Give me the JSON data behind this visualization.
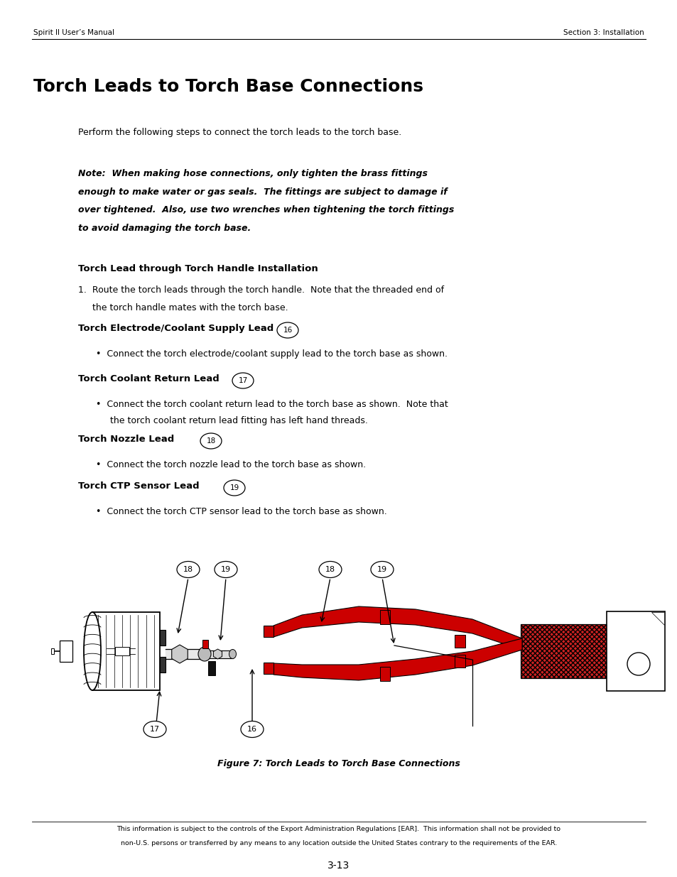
{
  "page_width": 9.54,
  "page_height": 12.35,
  "bg_color": "#ffffff",
  "header_left": "Spirit II User’s Manual",
  "header_right": "Section 3: Installation",
  "title": "Torch Leads to Torch Base Connections",
  "intro_text": "Perform the following steps to connect the torch leads to the torch base.",
  "note_line1": "Note:  When making hose connections, only tighten the brass fittings",
  "note_line2": "enough to make water or gas seals.  The fittings are subject to damage if",
  "note_line3": "over tightened.  Also, use two wrenches when tightening the torch fittings",
  "note_line4": "to avoid damaging the torch base.",
  "s1_title": "Torch Lead through Torch Handle Installation",
  "s1_body1": "1.  Route the torch leads through the torch handle.  Note that the threaded end of",
  "s1_body2": "     the torch handle mates with the torch base.",
  "s2_title": "Torch Electrode/Coolant Supply Lead",
  "s2_num": "16",
  "s2_body": "Connect the torch electrode/coolant supply lead to the torch base as shown.",
  "s3_title": "Torch Coolant Return Lead",
  "s3_num": "17",
  "s3_body1": "Connect the torch coolant return lead to the torch base as shown.  Note that",
  "s3_body2": "the torch coolant return lead fitting has left hand threads.",
  "s4_title": "Torch Nozzle Lead",
  "s4_num": "18",
  "s4_body": "Connect the torch nozzle lead to the torch base as shown.",
  "s5_title": "Torch CTP Sensor Lead",
  "s5_num": "19",
  "s5_body": "Connect the torch CTP sensor lead to the torch base as shown.",
  "figure_caption": "Figure 7: Torch Leads to Torch Base Connections",
  "footer_line1": "This information is subject to the controls of the Export Administration Regulations [EAR].  This information shall not be provided to",
  "footer_line2": "non-U.S. persons or transferred by any means to any location outside the United States contrary to the requirements of the EAR.",
  "page_num": "3-13",
  "red": "#cc0000",
  "dark_red": "#aa0000",
  "black": "#000000",
  "dark_gray": "#444444",
  "mid_gray": "#888888",
  "light_gray": "#cccccc",
  "near_white": "#f0f0f0"
}
